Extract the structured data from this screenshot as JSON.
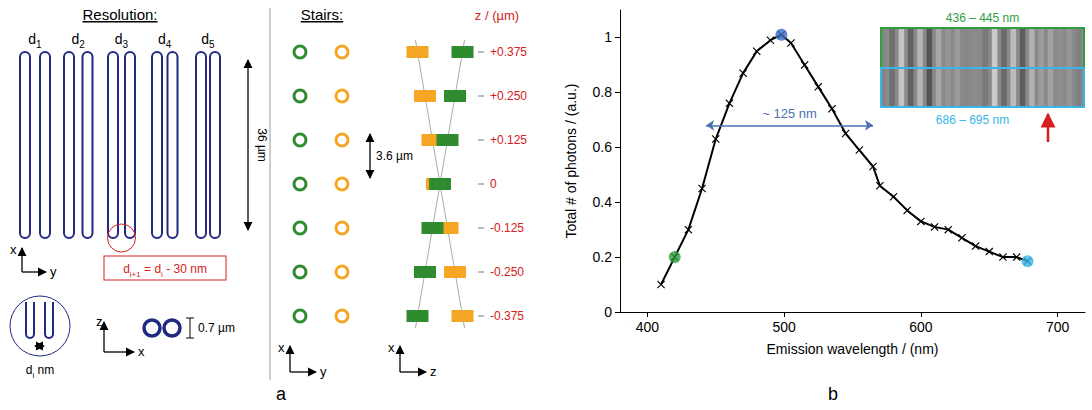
{
  "panel_labels": [
    "a",
    "b"
  ],
  "diagram": {
    "resolution": {
      "title": "Resolution:",
      "structures": [
        [
          {
            "t": "d"
          },
          {
            "sub": "1"
          }
        ],
        [
          {
            "t": "d"
          },
          {
            "sub": "2"
          }
        ],
        [
          {
            "t": "d"
          },
          {
            "sub": "3"
          }
        ],
        [
          {
            "t": "d"
          },
          {
            "sub": "4"
          }
        ],
        [
          {
            "t": "d"
          },
          {
            "sub": "5"
          }
        ]
      ],
      "length_label": "36 µm",
      "axes": {
        "vertical": "x",
        "horizontal": "y"
      },
      "rule": [
        {
          "t": "d"
        },
        {
          "sub": "i+1"
        },
        {
          "t": " = d"
        },
        {
          "sub": "i"
        },
        {
          "t": " - 30 nm"
        }
      ],
      "gap_label": [
        {
          "t": "d"
        },
        {
          "sub": "i"
        },
        {
          "t": " nm"
        }
      ],
      "cross_section": {
        "axes": {
          "vertical": "z",
          "horizontal": "x"
        },
        "height_label": "0.7 µm"
      }
    },
    "stairs": {
      "title": "Stairs:",
      "z_title": "z / (µm)",
      "z_levels": [
        {
          "value": 0.375,
          "label": "+0.375"
        },
        {
          "value": 0.25,
          "label": "+0.250"
        },
        {
          "value": 0.125,
          "label": "+0.125"
        },
        0,
        {
          "value": -0.125,
          "label": "-0.125"
        },
        {
          "value": -0.25,
          "label": "-0.250"
        },
        {
          "value": -0.375,
          "label": "-0.375"
        }
      ],
      "pitch_label": "3.6 µm",
      "top_view_axes": {
        "vertical": "x",
        "horizontal": "y"
      },
      "side_view_axes": {
        "vertical": "x",
        "horizontal": "z"
      }
    }
  },
  "chart_data": {
    "type": "line",
    "x_label": "Emission wavelength / (nm)",
    "y_label": "Total # of photons / (a.u.)",
    "x": [
      410,
      420,
      430,
      440,
      450,
      460,
      470,
      480,
      490,
      498,
      505,
      515,
      525,
      535,
      545,
      555,
      565,
      570,
      580,
      590,
      600,
      610,
      620,
      630,
      640,
      650,
      660,
      670,
      678
    ],
    "values": [
      0.1,
      0.2,
      0.3,
      0.45,
      0.63,
      0.76,
      0.87,
      0.95,
      0.99,
      1.01,
      0.98,
      0.9,
      0.82,
      0.74,
      0.65,
      0.59,
      0.53,
      0.46,
      0.42,
      0.37,
      0.33,
      0.31,
      0.3,
      0.27,
      0.24,
      0.22,
      0.2,
      0.2,
      0.185
    ],
    "color": "#000000",
    "marker": "x",
    "xlim": [
      380,
      720
    ],
    "xticks": [
      400,
      500,
      600,
      700
    ],
    "ylim": [
      0,
      1.1
    ],
    "yticks": [
      0,
      0.2,
      0.4,
      0.6,
      0.8,
      1
    ],
    "grid": false,
    "highlights": [
      {
        "x": 420,
        "y": 0.2,
        "color": "#2e9e3e"
      },
      {
        "x": 498,
        "y": 1.01,
        "color": "#3b6cc4"
      },
      {
        "x": 678,
        "y": 0.185,
        "color": "#38b6e8"
      }
    ],
    "annotations": [
      {
        "text": "~ 125 nm",
        "x_from": 443,
        "x_to": 565,
        "y": 0.68
      }
    ],
    "inset": {
      "top_label": "436 – 445 nm",
      "bottom_label": "686 – 695 nm"
    }
  }
}
